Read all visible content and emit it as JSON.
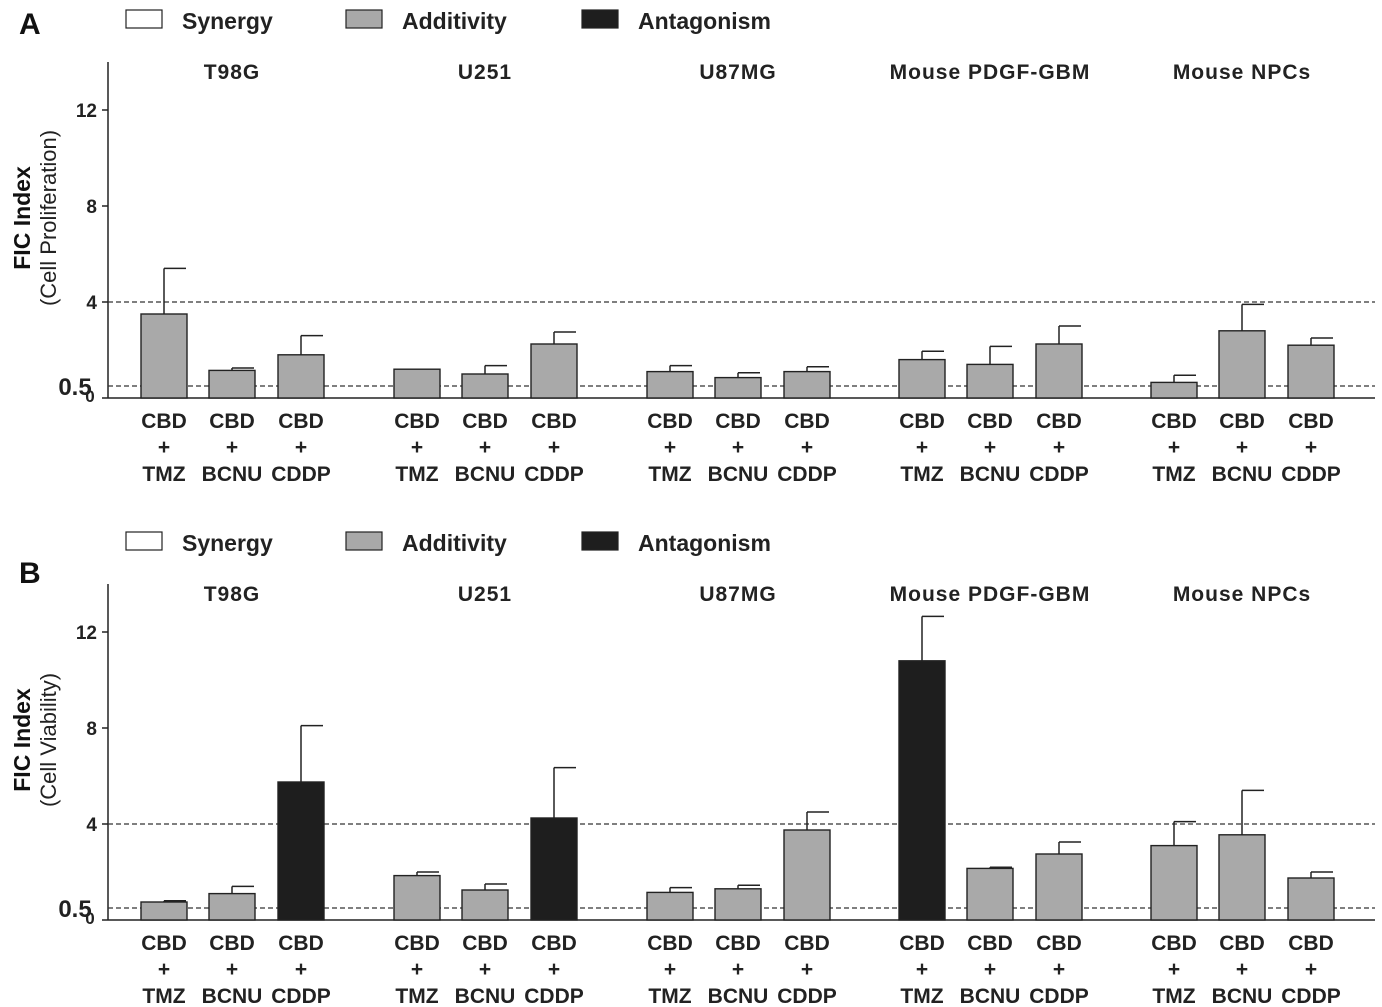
{
  "legend": [
    {
      "label": "Synergy",
      "color": "#ffffff"
    },
    {
      "label": "Additivity",
      "color": "#a9a9a9"
    },
    {
      "label": "Antagonism",
      "color": "#1e1e1e"
    }
  ],
  "chart_data": [
    {
      "type": "bar",
      "panel": "A",
      "ylabel": "FIC Index",
      "ylabel_sub": "(Cell Proliferation)",
      "ylim": [
        0,
        14
      ],
      "yticks": [
        0,
        4,
        8,
        12
      ],
      "reference_lines": [
        0.5,
        4
      ],
      "reference_tick_label": "0.5",
      "groups": [
        {
          "name": "T98G",
          "bars": [
            {
              "label": [
                "CBD",
                "+",
                "TMZ"
              ],
              "value": 3.5,
              "error": 1.9,
              "class": "Additivity"
            },
            {
              "label": [
                "CBD",
                "+",
                "BCNU"
              ],
              "value": 1.15,
              "error": 0.1,
              "class": "Additivity"
            },
            {
              "label": [
                "CBD",
                "+",
                "CDDP"
              ],
              "value": 1.8,
              "error": 0.8,
              "class": "Additivity"
            }
          ]
        },
        {
          "name": "U251",
          "bars": [
            {
              "label": [
                "CBD",
                "+",
                "TMZ"
              ],
              "value": 1.2,
              "error": 0.0,
              "class": "Additivity"
            },
            {
              "label": [
                "CBD",
                "+",
                "BCNU"
              ],
              "value": 1.0,
              "error": 0.35,
              "class": "Additivity"
            },
            {
              "label": [
                "CBD",
                "+",
                "CDDP"
              ],
              "value": 2.25,
              "error": 0.5,
              "class": "Additivity"
            }
          ]
        },
        {
          "name": "U87MG",
          "bars": [
            {
              "label": [
                "CBD",
                "+",
                "TMZ"
              ],
              "value": 1.1,
              "error": 0.25,
              "class": "Additivity"
            },
            {
              "label": [
                "CBD",
                "+",
                "BCNU"
              ],
              "value": 0.85,
              "error": 0.2,
              "class": "Additivity"
            },
            {
              "label": [
                "CBD",
                "+",
                "CDDP"
              ],
              "value": 1.1,
              "error": 0.2,
              "class": "Additivity"
            }
          ]
        },
        {
          "name": "Mouse PDGF-GBM",
          "bars": [
            {
              "label": [
                "CBD",
                "+",
                "TMZ"
              ],
              "value": 1.6,
              "error": 0.35,
              "class": "Additivity"
            },
            {
              "label": [
                "CBD",
                "+",
                "BCNU"
              ],
              "value": 1.4,
              "error": 0.75,
              "class": "Additivity"
            },
            {
              "label": [
                "CBD",
                "+",
                "CDDP"
              ],
              "value": 2.25,
              "error": 0.75,
              "class": "Additivity"
            }
          ]
        },
        {
          "name": "Mouse NPCs",
          "bars": [
            {
              "label": [
                "CBD",
                "+",
                "TMZ"
              ],
              "value": 0.65,
              "error": 0.3,
              "class": "Additivity"
            },
            {
              "label": [
                "CBD",
                "+",
                "BCNU"
              ],
              "value": 2.8,
              "error": 1.1,
              "class": "Additivity"
            },
            {
              "label": [
                "CBD",
                "+",
                "CDDP"
              ],
              "value": 2.2,
              "error": 0.3,
              "class": "Additivity"
            }
          ]
        }
      ]
    },
    {
      "type": "bar",
      "panel": "B",
      "ylabel": "FIC Index",
      "ylabel_sub": "(Cell Viability)",
      "ylim": [
        0,
        14
      ],
      "yticks": [
        0,
        4,
        8,
        12
      ],
      "reference_lines": [
        0.5,
        4
      ],
      "reference_tick_label": "0.5",
      "groups": [
        {
          "name": "T98G",
          "bars": [
            {
              "label": [
                "CBD",
                "+",
                "TMZ"
              ],
              "value": 0.75,
              "error": 0.05,
              "class": "Additivity"
            },
            {
              "label": [
                "CBD",
                "+",
                "BCNU"
              ],
              "value": 1.1,
              "error": 0.3,
              "class": "Additivity"
            },
            {
              "label": [
                "CBD",
                "+",
                "CDDP"
              ],
              "value": 5.75,
              "error": 2.35,
              "class": "Antagonism"
            }
          ]
        },
        {
          "name": "U251",
          "bars": [
            {
              "label": [
                "CBD",
                "+",
                "TMZ"
              ],
              "value": 1.85,
              "error": 0.15,
              "class": "Additivity"
            },
            {
              "label": [
                "CBD",
                "+",
                "BCNU"
              ],
              "value": 1.25,
              "error": 0.25,
              "class": "Additivity"
            },
            {
              "label": [
                "CBD",
                "+",
                "CDDP"
              ],
              "value": 4.25,
              "error": 2.1,
              "class": "Antagonism"
            }
          ]
        },
        {
          "name": "U87MG",
          "bars": [
            {
              "label": [
                "CBD",
                "+",
                "TMZ"
              ],
              "value": 1.15,
              "error": 0.2,
              "class": "Additivity"
            },
            {
              "label": [
                "CBD",
                "+",
                "BCNU"
              ],
              "value": 1.3,
              "error": 0.15,
              "class": "Additivity"
            },
            {
              "label": [
                "CBD",
                "+",
                "CDDP"
              ],
              "value": 3.75,
              "error": 0.75,
              "class": "Additivity"
            }
          ]
        },
        {
          "name": "Mouse PDGF-GBM",
          "bars": [
            {
              "label": [
                "CBD",
                "+",
                "TMZ"
              ],
              "value": 10.8,
              "error": 1.85,
              "class": "Antagonism"
            },
            {
              "label": [
                "CBD",
                "+",
                "BCNU"
              ],
              "value": 2.15,
              "error": 0.05,
              "class": "Additivity"
            },
            {
              "label": [
                "CBD",
                "+",
                "CDDP"
              ],
              "value": 2.75,
              "error": 0.5,
              "class": "Additivity"
            }
          ]
        },
        {
          "name": "Mouse NPCs",
          "bars": [
            {
              "label": [
                "CBD",
                "+",
                "TMZ"
              ],
              "value": 3.1,
              "error": 1.0,
              "class": "Additivity"
            },
            {
              "label": [
                "CBD",
                "+",
                "BCNU"
              ],
              "value": 3.55,
              "error": 1.85,
              "class": "Additivity"
            },
            {
              "label": [
                "CBD",
                "+",
                "CDDP"
              ],
              "value": 1.75,
              "error": 0.25,
              "class": "Additivity"
            }
          ]
        }
      ]
    }
  ]
}
